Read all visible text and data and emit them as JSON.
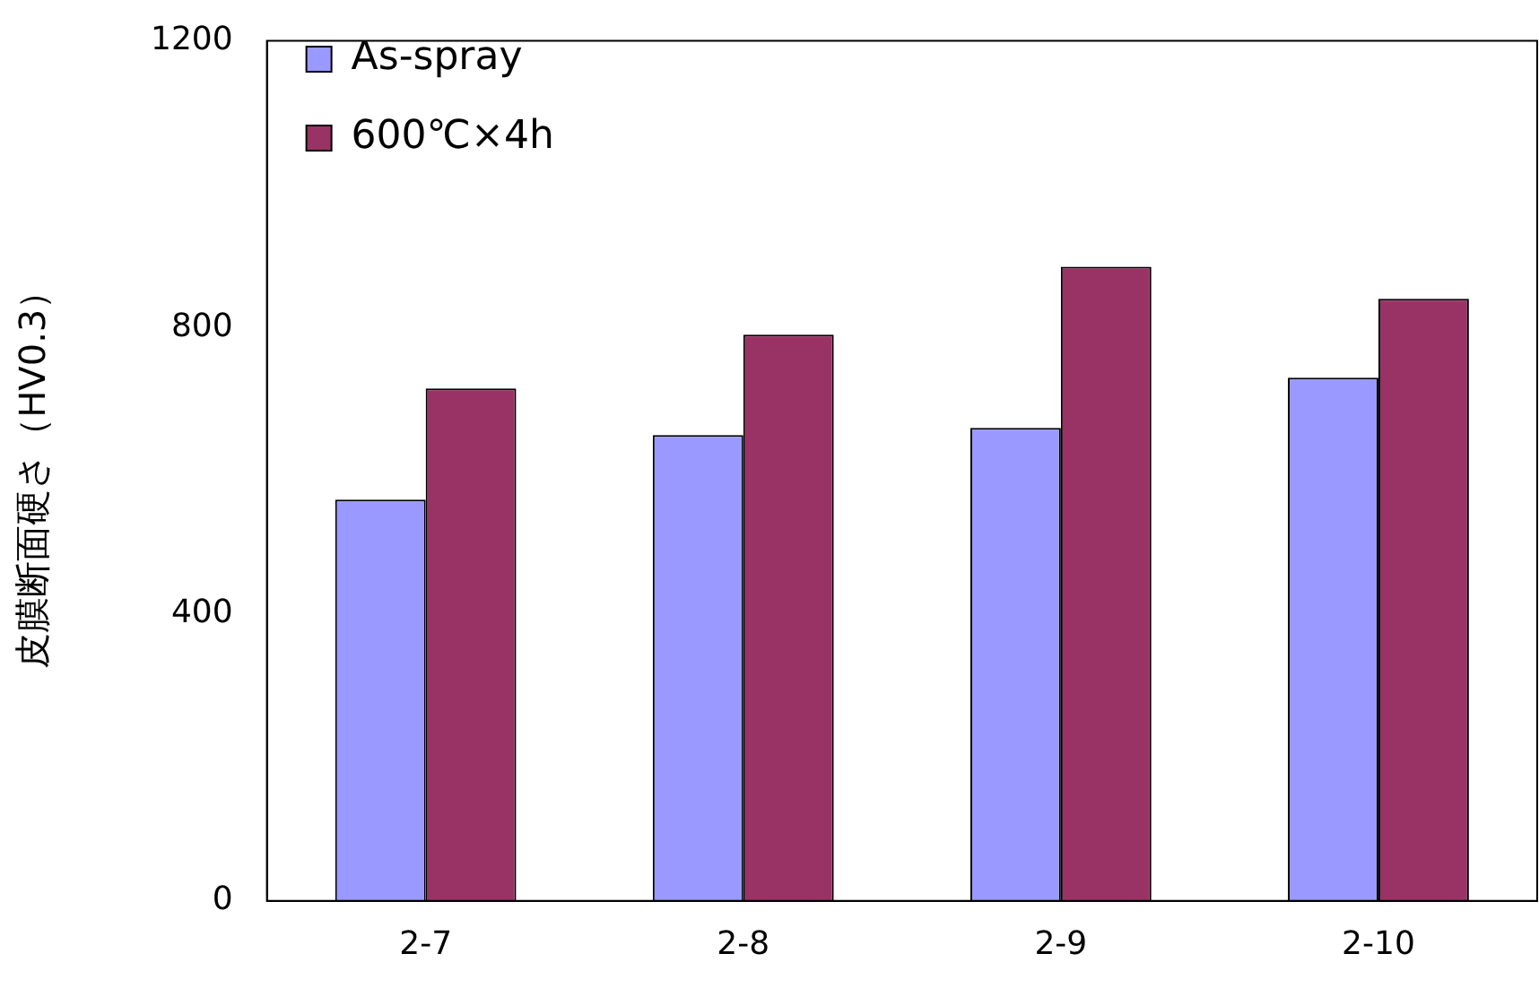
{
  "chart_data": {
    "type": "bar",
    "ylabel": "皮膜断面硬さ（HV0.3）",
    "categories": [
      "2-7",
      "2-8",
      "2-9",
      "2-10"
    ],
    "series": [
      {
        "name": "As-spray",
        "color": "#9999ff",
        "values": [
          560,
          650,
          660,
          730
        ]
      },
      {
        "name": "600℃×4h",
        "color": "#993366",
        "values": [
          715,
          790,
          885,
          840
        ]
      }
    ],
    "ylim": [
      0,
      1200
    ],
    "yticks": [
      0,
      400,
      800,
      1200
    ],
    "grid": false,
    "legend": "top left"
  }
}
